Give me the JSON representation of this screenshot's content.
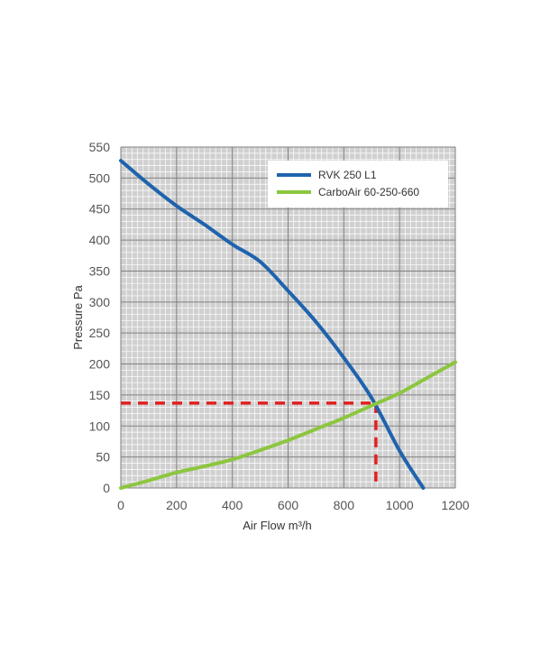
{
  "chart_data": {
    "type": "line",
    "xlabel": "Air Flow m³/h",
    "ylabel": "Pressure Pa",
    "xlim": [
      0,
      1200
    ],
    "ylim": [
      0,
      550
    ],
    "x_ticks": [
      0,
      200,
      400,
      600,
      800,
      1000,
      1200
    ],
    "y_ticks": [
      0,
      50,
      100,
      150,
      200,
      250,
      300,
      350,
      400,
      450,
      500,
      550
    ],
    "grid": true,
    "legend_position": "top-right",
    "colors": {
      "background": "#d0d0d0",
      "minor_grid": "#ffffff",
      "major_grid": "#808080",
      "operating_point": "#e02020"
    },
    "series": [
      {
        "name": "RVK 250 L1",
        "color": "#1f63ad",
        "x": [
          0,
          100,
          200,
          300,
          400,
          500,
          600,
          700,
          800,
          900,
          1000,
          1085
        ],
        "y": [
          528,
          490,
          455,
          425,
          393,
          365,
          318,
          268,
          210,
          145,
          60,
          0
        ]
      },
      {
        "name": "CarboAir 60-250-660",
        "color": "#8cc63f",
        "x": [
          0,
          100,
          200,
          300,
          400,
          500,
          600,
          700,
          800,
          900,
          1000,
          1100,
          1200
        ],
        "y": [
          0,
          12,
          25,
          35,
          46,
          61,
          77,
          95,
          113,
          133,
          153,
          178,
          203
        ]
      }
    ],
    "operating_point": {
      "x": 915,
      "y": 137
    }
  }
}
